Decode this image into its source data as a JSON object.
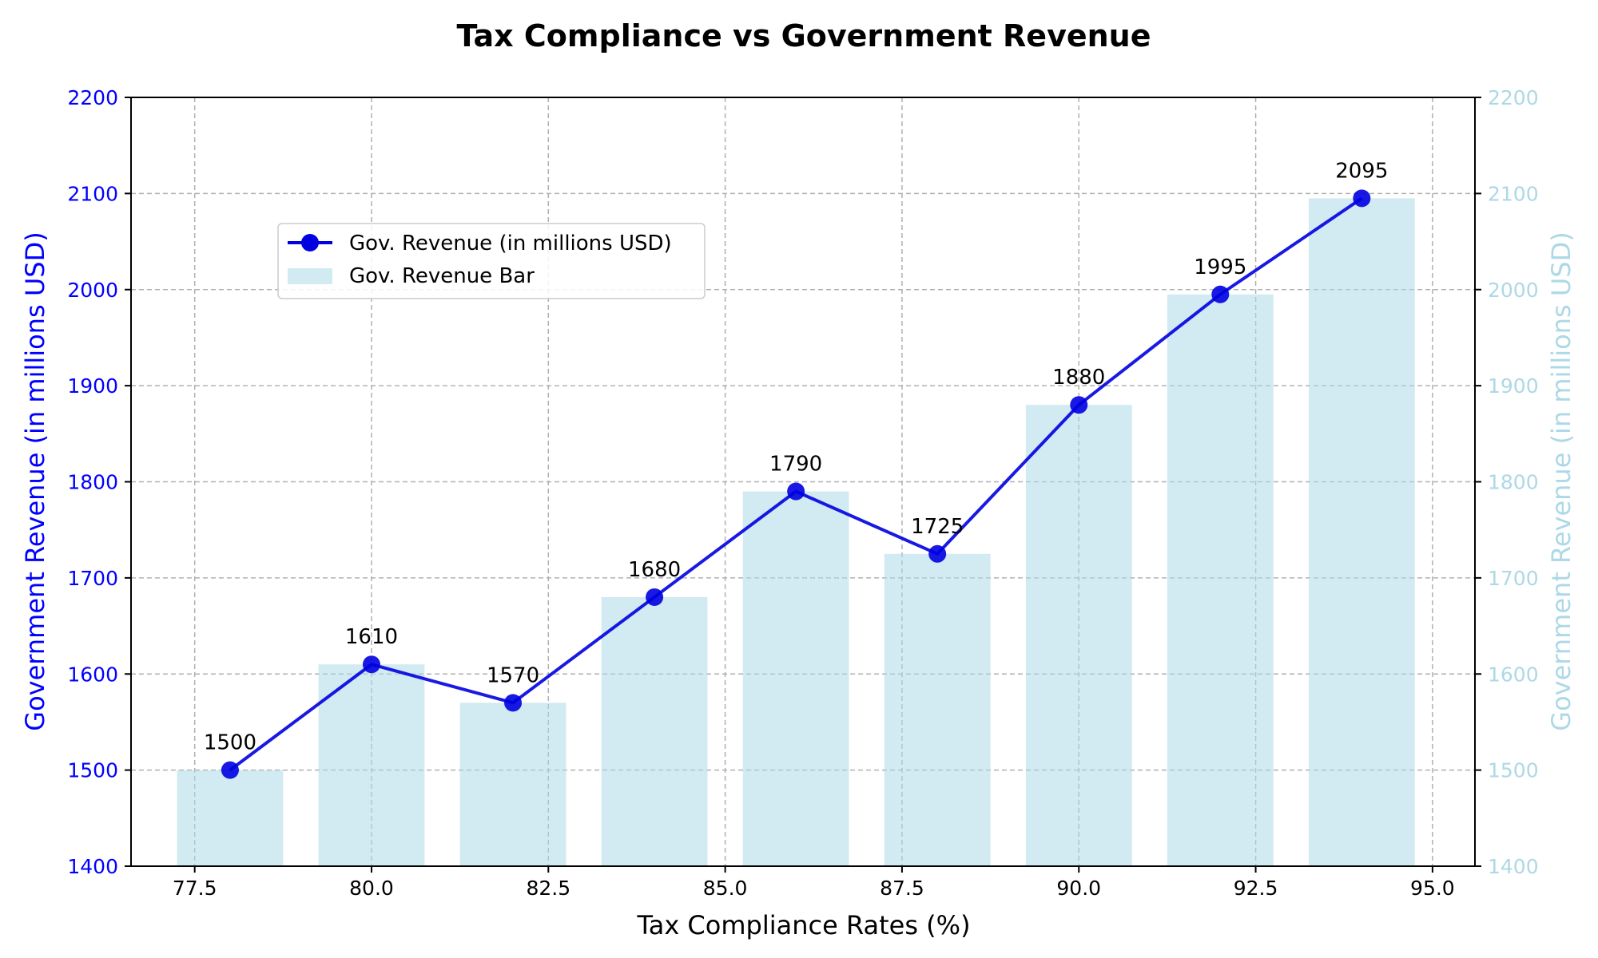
{
  "chart_data": {
    "type": "bar",
    "title": "Tax Compliance vs Government Revenue",
    "xlabel": "Tax Compliance Rates (%)",
    "ylabel": "Government Revenue (in millions USD)",
    "ylabel_right": "Government Revenue (in millions USD)",
    "x": [
      78,
      80,
      82,
      84,
      86,
      88,
      90,
      92,
      94
    ],
    "xlim": [
      76.6,
      95.6
    ],
    "ylim": [
      1400,
      2200
    ],
    "x_ticks": [
      "77.5",
      "80.0",
      "82.5",
      "85.0",
      "87.5",
      "90.0",
      "92.5",
      "95.0"
    ],
    "x_tick_values": [
      77.5,
      80,
      82.5,
      85,
      87.5,
      90,
      92.5,
      95
    ],
    "y_ticks": [
      "1400",
      "1500",
      "1600",
      "1700",
      "1800",
      "1900",
      "2000",
      "2100",
      "2200"
    ],
    "y_tick_values": [
      1400,
      1500,
      1600,
      1700,
      1800,
      1900,
      2000,
      2100,
      2200
    ],
    "grid": true,
    "legend_position": "upper-left",
    "series": [
      {
        "name": "Gov. Revenue (in millions USD)",
        "type": "line",
        "color": "#0000e0",
        "values": [
          1500,
          1610,
          1570,
          1680,
          1790,
          1725,
          1880,
          1995,
          2095
        ],
        "labels": [
          "1500",
          "1610",
          "1570",
          "1680",
          "1790",
          "1725",
          "1880",
          "1995",
          "2095"
        ]
      },
      {
        "name": "Gov. Revenue Bar",
        "type": "bar",
        "color": "#add8e6",
        "bar_width": 1.5,
        "values": [
          1500,
          1610,
          1570,
          1680,
          1790,
          1725,
          1880,
          1995,
          2095
        ]
      }
    ],
    "colors": {
      "left_axis": "#0000ff",
      "right_axis": "#add8e6"
    }
  }
}
